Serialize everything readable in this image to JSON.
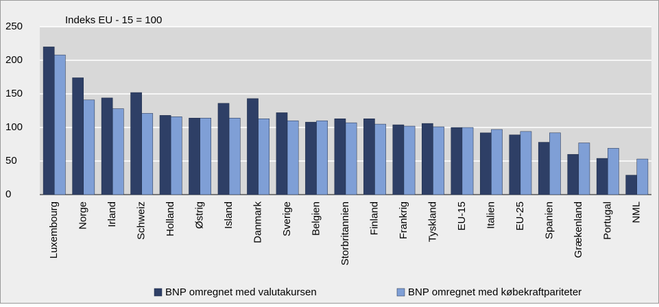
{
  "chart_data": {
    "type": "bar",
    "annotation": "Indeks EU - 15 = 100",
    "categories": [
      "Luxembourg",
      "Norge",
      "Irland",
      "Schweiz",
      "Holland",
      "Østrig",
      "Island",
      "Danmark",
      "Sverige",
      "Belgien",
      "Storbritannien",
      "Finland",
      "Frankrig",
      "Tyskland",
      "EU-15",
      "Italien",
      "EU-25",
      "Spanien",
      "Grækenland",
      "Portugal",
      "NML"
    ],
    "series": [
      {
        "name": "BNP omregnet med valutakursen",
        "color": "#2e3f66",
        "values": [
          220,
          174,
          144,
          152,
          118,
          114,
          136,
          143,
          122,
          108,
          113,
          113,
          104,
          106,
          100,
          92,
          89,
          78,
          60,
          54,
          29
        ]
      },
      {
        "name": "BNP omregnet med købekraftpariteter",
        "color": "#7f9fd6",
        "values": [
          208,
          141,
          128,
          121,
          116,
          114,
          114,
          113,
          110,
          110,
          107,
          105,
          102,
          101,
          100,
          97,
          94,
          92,
          77,
          69,
          53
        ]
      }
    ],
    "ylim": [
      0,
      250
    ],
    "yticks": [
      0,
      50,
      100,
      150,
      200,
      250
    ],
    "grid": true
  }
}
